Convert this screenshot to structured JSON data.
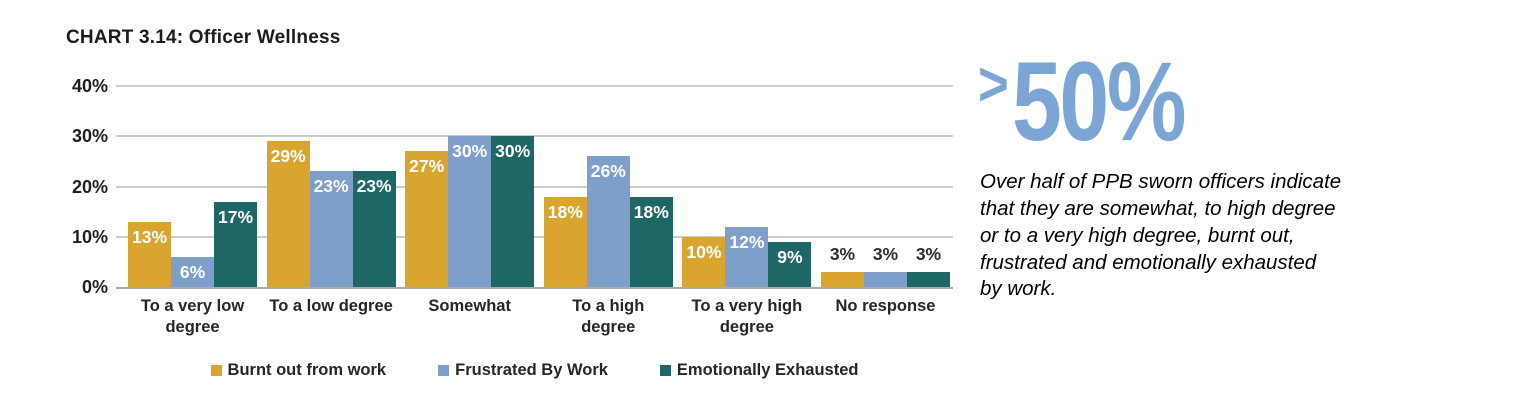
{
  "title": "CHART 3.14: Officer Wellness",
  "chart_data": {
    "type": "bar",
    "title": "CHART 3.14: Officer Wellness",
    "categories": [
      "To a very low degree",
      "To a low degree",
      "Somewhat",
      "To a high degree",
      "To a very high degree",
      "No response"
    ],
    "series": [
      {
        "name": "Burnt out from work",
        "color": "#D9A52F",
        "values": [
          13,
          29,
          27,
          18,
          10,
          3
        ]
      },
      {
        "name": "Frustrated By Work",
        "color": "#7E9FC9",
        "values": [
          6,
          23,
          30,
          26,
          12,
          3
        ]
      },
      {
        "name": "Emotionally Exhausted",
        "color": "#1E6766",
        "values": [
          17,
          23,
          30,
          18,
          9,
          3
        ]
      }
    ],
    "value_label_suffix": "%",
    "xlabel": "",
    "ylabel": "",
    "ylim": [
      0,
      40
    ],
    "yticks": [
      40,
      30,
      20,
      10,
      0
    ],
    "ytick_suffix": "%",
    "grid": true,
    "legend_position": "bottom"
  },
  "aside": {
    "stat_prefix": ">",
    "stat_value": "50%",
    "stat_color": "#7BA5D4",
    "caption": "Over half of PPB sworn officers indicate\nthat they are somewhat, to high degree\nor to a very high degree, burnt out,\nfrustrated and emotionally exhausted\nby work."
  }
}
